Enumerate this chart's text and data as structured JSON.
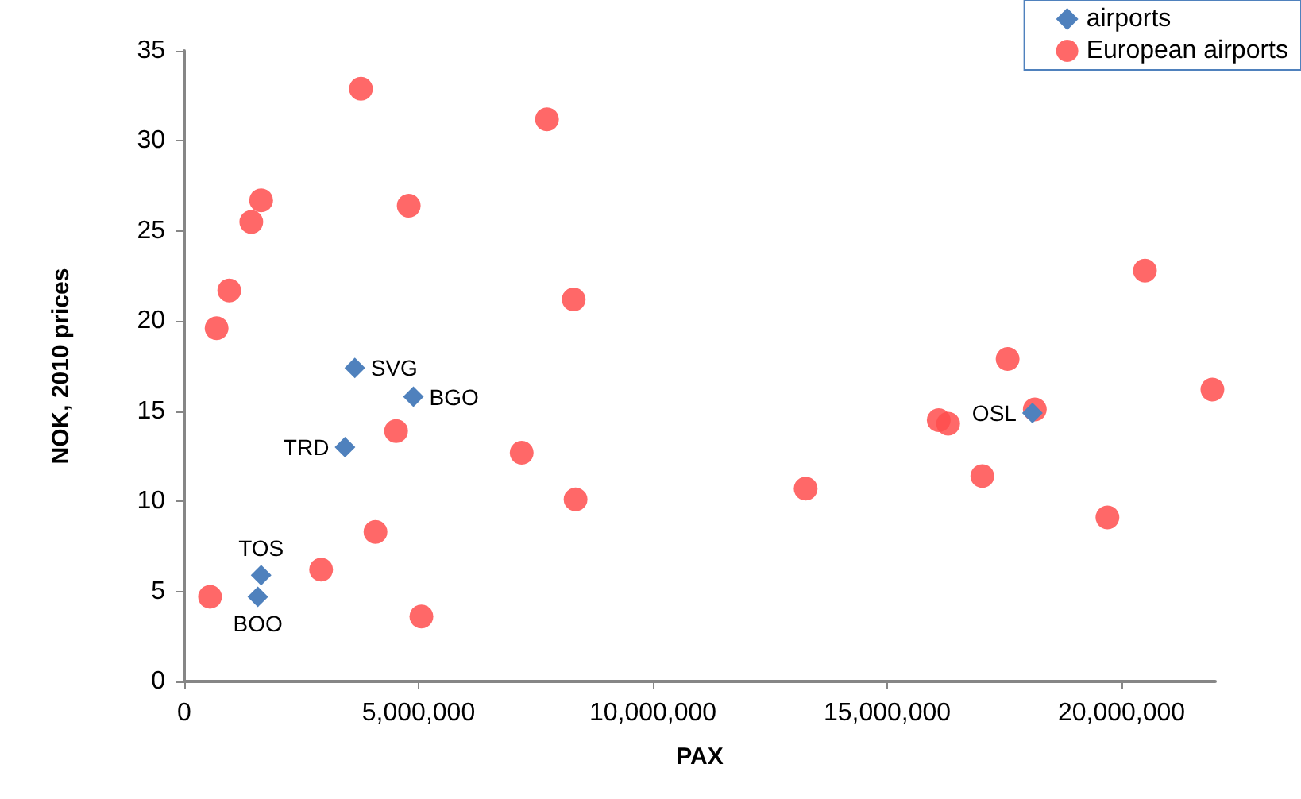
{
  "chart_data": {
    "type": "scatter",
    "xlabel": "PAX",
    "ylabel": "NOK, 2010 prices",
    "xlim": [
      0,
      22000000
    ],
    "xticks": [
      0,
      {
        "value": 5000000,
        "label": "5,000,000"
      },
      {
        "value": 10000000,
        "label": "10,000,000"
      },
      {
        "value": 15000000,
        "label": "15,000,000"
      },
      {
        "value": 20000000,
        "label": "20,000,000"
      }
    ],
    "ylim": [
      0,
      35
    ],
    "yticks": [
      0,
      5,
      10,
      15,
      20,
      25,
      30,
      35
    ],
    "grid": false,
    "legend": "top right",
    "series": [
      {
        "name": "airports",
        "color": "#4f81bd",
        "marker": "diamond",
        "x": [
          3640000,
          4890000,
          3430000,
          1640000,
          1570000,
          18100000
        ],
        "values": [
          17.4,
          15.8,
          13.0,
          5.9,
          4.7,
          14.9
        ]
      },
      {
        "name": "European airports",
        "color": "#ff4d4d",
        "marker": "circle",
        "x": [
          3770000,
          7740000,
          1640000,
          1430000,
          4790000,
          960000,
          690000,
          8310000,
          4520000,
          7200000,
          8350000,
          4080000,
          2920000,
          550000,
          5060000,
          13260000,
          16100000,
          16300000,
          17030000,
          17570000,
          18150000,
          19700000,
          20500000,
          21940000
        ],
        "values": [
          32.9,
          31.2,
          26.7,
          25.5,
          26.4,
          21.7,
          19.6,
          21.2,
          13.9,
          12.7,
          10.1,
          8.3,
          6.2,
          4.7,
          3.6,
          10.7,
          14.5,
          14.3,
          11.4,
          17.9,
          15.1,
          9.1,
          22.8,
          16.2
        ]
      }
    ],
    "annotations": [
      {
        "text": "SVG",
        "x": 3640000,
        "y": 17.4
      },
      {
        "text": "BGO",
        "x": 4890000,
        "y": 15.8
      },
      {
        "text": "TRD",
        "x": 3430000,
        "y": 13.0
      },
      {
        "text": "TOS",
        "x": 1640000,
        "y": 5.9
      },
      {
        "text": "BOO",
        "x": 1570000,
        "y": 4.7
      },
      {
        "text": "OSL",
        "x": 18100000,
        "y": 14.9
      }
    ]
  }
}
